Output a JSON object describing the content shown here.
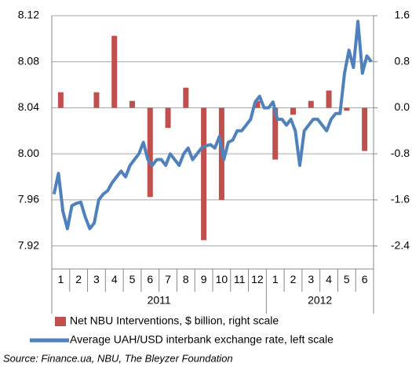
{
  "chart_data": {
    "type": "bar-line",
    "categories": [
      "1",
      "2",
      "3",
      "4",
      "5",
      "6",
      "7",
      "8",
      "9",
      "10",
      "11",
      "12",
      "1",
      "2",
      "3",
      "4",
      "5",
      "6"
    ],
    "years": [
      "2011",
      "2011",
      "2011",
      "2011",
      "2011",
      "2011",
      "2011",
      "2011",
      "2011",
      "2011",
      "2011",
      "2011",
      "2012",
      "2012",
      "2012",
      "2012",
      "2012",
      "2012"
    ],
    "series": [
      {
        "name": "Net NBU Interventions, $ billion, right scale",
        "color": "#c0504d",
        "axis": "y2",
        "values": [
          0.27,
          0,
          0.27,
          1.25,
          0.12,
          -1.55,
          -0.35,
          0.35,
          -2.3,
          -1.6,
          0,
          0.12,
          -0.9,
          -0.12,
          0.12,
          0.3,
          -0.05,
          -0.75
        ]
      },
      {
        "name": "Average UAH/USD interbank exchange rate, left scale",
        "color": "#4f81bd",
        "x": [
          0.125,
          0.375,
          0.625,
          0.875,
          1.125,
          1.375,
          1.625,
          1.875,
          2.125,
          2.375,
          2.625,
          2.875,
          3.125,
          3.375,
          3.625,
          3.875,
          4.125,
          4.375,
          4.625,
          4.875,
          5.125,
          5.375,
          5.625,
          5.875,
          6.125,
          6.375,
          6.625,
          6.875,
          7.125,
          7.375,
          7.625,
          7.875,
          8.125,
          8.375,
          8.625,
          8.875,
          9.125,
          9.375,
          9.625,
          9.875,
          10.125,
          10.375,
          10.625,
          10.875,
          11.125,
          11.375,
          11.625,
          11.875,
          12.125,
          12.375,
          12.625,
          12.875,
          13.125,
          13.375,
          13.625,
          13.875,
          14.125,
          14.375,
          14.625,
          14.875,
          15.125,
          15.375,
          15.625,
          15.875,
          16.125,
          16.375,
          16.625,
          16.875,
          17.125,
          17.375,
          17.625,
          17.875
        ],
        "values": [
          7.965,
          7.983,
          7.95,
          7.935,
          7.955,
          7.957,
          7.958,
          7.945,
          7.935,
          7.94,
          7.96,
          7.965,
          7.968,
          7.975,
          7.98,
          7.985,
          7.98,
          7.99,
          7.995,
          8.0,
          8.01,
          7.995,
          7.99,
          7.995,
          7.995,
          7.99,
          8.0,
          7.995,
          7.99,
          8.0,
          8.005,
          7.995,
          8.0,
          8.005,
          8.007,
          8.008,
          8.005,
          8.015,
          7.995,
          8.01,
          8.012,
          8.02,
          8.02,
          8.025,
          8.03,
          8.045,
          8.05,
          8.04,
          8.04,
          8.045,
          8.03,
          8.03,
          8.025,
          8.03,
          8.02,
          7.99,
          8.02,
          8.025,
          8.03,
          8.03,
          8.025,
          8.02,
          8.03,
          8.035,
          8.035,
          8.07,
          8.09,
          8.075,
          8.115,
          8.07,
          8.085,
          8.08
        ]
      }
    ],
    "ylim": [
      7.9,
      8.12
    ],
    "yticks": [
      8.12,
      8.08,
      8.04,
      {
        "value": 8,
        "label": "8.00"
      },
      7.96,
      7.92
    ],
    "y2lim": [
      -2.8,
      1.6
    ],
    "y2ticks": [
      1.6,
      0.8,
      {
        "value": 0,
        "label": "0.0"
      },
      -0.8,
      -1.6,
      -2.4
    ],
    "grid": true,
    "source": "Source: Finance.ua, NBU, The Bleyzer Foundation"
  }
}
